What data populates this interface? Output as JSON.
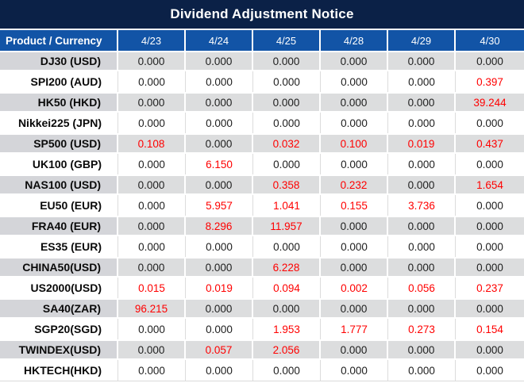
{
  "window": {
    "title": "Dividend Adjustment Notice"
  },
  "table": {
    "product_header": "Product / Currency",
    "date_headers": [
      "4/23",
      "4/24",
      "4/25",
      "4/28",
      "4/29",
      "4/30"
    ],
    "rows": [
      {
        "product": "DJ30 (USD)",
        "values": [
          "0.000",
          "0.000",
          "0.000",
          "0.000",
          "0.000",
          "0.000"
        ]
      },
      {
        "product": "SPI200 (AUD)",
        "values": [
          "0.000",
          "0.000",
          "0.000",
          "0.000",
          "0.000",
          "0.397"
        ]
      },
      {
        "product": "HK50 (HKD)",
        "values": [
          "0.000",
          "0.000",
          "0.000",
          "0.000",
          "0.000",
          "39.244"
        ]
      },
      {
        "product": "Nikkei225 (JPN)",
        "values": [
          "0.000",
          "0.000",
          "0.000",
          "0.000",
          "0.000",
          "0.000"
        ]
      },
      {
        "product": "SP500 (USD)",
        "values": [
          "0.108",
          "0.000",
          "0.032",
          "0.100",
          "0.019",
          "0.437"
        ]
      },
      {
        "product": "UK100 (GBP)",
        "values": [
          "0.000",
          "6.150",
          "0.000",
          "0.000",
          "0.000",
          "0.000"
        ]
      },
      {
        "product": "NAS100 (USD)",
        "values": [
          "0.000",
          "0.000",
          "0.358",
          "0.232",
          "0.000",
          "1.654"
        ]
      },
      {
        "product": "EU50 (EUR)",
        "values": [
          "0.000",
          "5.957",
          "1.041",
          "0.155",
          "3.736",
          "0.000"
        ]
      },
      {
        "product": "FRA40 (EUR)",
        "values": [
          "0.000",
          "8.296",
          "11.957",
          "0.000",
          "0.000",
          "0.000"
        ]
      },
      {
        "product": "ES35 (EUR)",
        "values": [
          "0.000",
          "0.000",
          "0.000",
          "0.000",
          "0.000",
          "0.000"
        ]
      },
      {
        "product": "CHINA50(USD)",
        "values": [
          "0.000",
          "0.000",
          "6.228",
          "0.000",
          "0.000",
          "0.000"
        ]
      },
      {
        "product": "US2000(USD)",
        "values": [
          "0.015",
          "0.019",
          "0.094",
          "0.002",
          "0.056",
          "0.237"
        ]
      },
      {
        "product": "SA40(ZAR)",
        "values": [
          "96.215",
          "0.000",
          "0.000",
          "0.000",
          "0.000",
          "0.000"
        ]
      },
      {
        "product": "SGP20(SGD)",
        "values": [
          "0.000",
          "0.000",
          "1.953",
          "1.777",
          "0.273",
          "0.154"
        ]
      },
      {
        "product": "TWINDEX(USD)",
        "values": [
          "0.000",
          "0.057",
          "2.056",
          "0.000",
          "0.000",
          "0.000"
        ]
      },
      {
        "product": "HKTECH(HKD)",
        "values": [
          "0.000",
          "0.000",
          "0.000",
          "0.000",
          "0.000",
          "0.000"
        ]
      }
    ],
    "zero_value": "0.000"
  },
  "colors": {
    "title_bar_bg": "#0b2147",
    "header_bg": "#1254a6",
    "row_stripe_gray": "#dcddde",
    "label_stripe_gray": "#d4d5d9",
    "highlight_red": "#ff0000",
    "value_black": "#202020"
  }
}
